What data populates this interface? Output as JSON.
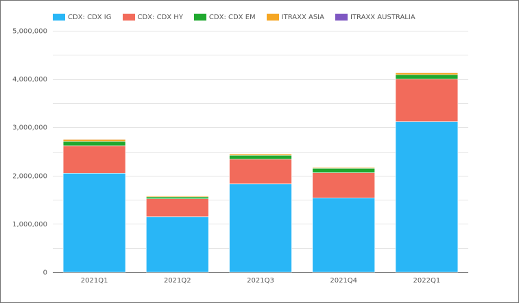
{
  "chart_data": {
    "type": "bar",
    "stacked": true,
    "categories": [
      "2021Q1",
      "2021Q2",
      "2021Q3",
      "2021Q4",
      "2022Q1"
    ],
    "series": [
      {
        "name": "CDX: CDX IG",
        "color": "#29b6f6",
        "values": [
          2050000,
          1150000,
          1830000,
          1540000,
          3120000
        ]
      },
      {
        "name": "CDX: CDX HY",
        "color": "#f26b5b",
        "values": [
          570000,
          370000,
          510000,
          520000,
          880000
        ]
      },
      {
        "name": "CDX: CDX EM",
        "color": "#1fa82e",
        "values": [
          90000,
          40000,
          80000,
          90000,
          90000
        ]
      },
      {
        "name": "ITRAXX ASIA",
        "color": "#f5a623",
        "values": [
          40000,
          20000,
          30000,
          20000,
          40000
        ]
      },
      {
        "name": "ITRAXX AUSTRALIA",
        "color": "#7e57c2",
        "values": [
          10000,
          5000,
          5000,
          5000,
          10000
        ]
      }
    ],
    "ylim": [
      0,
      5000000
    ],
    "yticks": [
      0,
      1000000,
      2000000,
      3000000,
      4000000,
      5000000
    ],
    "ytick_labels": [
      "0",
      "1,000,000",
      "2,000,000",
      "3,000,000",
      "4,000,000",
      "5,000,000"
    ],
    "grid": true,
    "legend_position": "top-left"
  }
}
